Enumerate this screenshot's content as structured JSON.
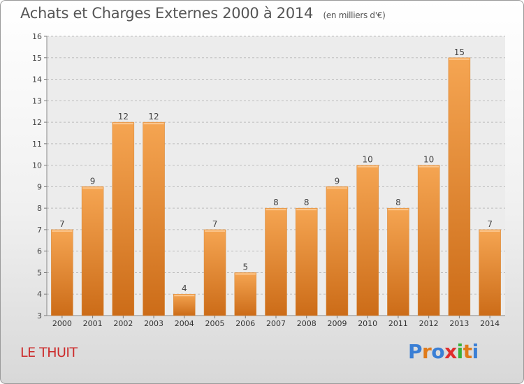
{
  "header": {
    "title": "Achats et Charges Externes 2000 à 2014",
    "subtitle": "(en milliers d'€)"
  },
  "footer": {
    "commune": "LE THUIT",
    "logo_text": "Proxiti",
    "logo_colors": [
      "#3a7fd5",
      "#e07b1a",
      "#3a7fd5",
      "#e02d2d",
      "#3ab03a",
      "#e07b1a",
      "#3a7fd5"
    ]
  },
  "chart_data": {
    "type": "bar",
    "title": "Achats et Charges Externes 2000 à 2014",
    "subtitle": "(en milliers d'€)",
    "categories": [
      "2000",
      "2001",
      "2002",
      "2003",
      "2004",
      "2005",
      "2006",
      "2007",
      "2008",
      "2009",
      "2010",
      "2011",
      "2012",
      "2013",
      "2014"
    ],
    "values": [
      7,
      9,
      12,
      12,
      4,
      7,
      5,
      8,
      8,
      9,
      10,
      8,
      10,
      15,
      7
    ],
    "xlabel": "",
    "ylabel": "",
    "ylim": [
      3,
      16
    ],
    "yticks": [
      3,
      4,
      5,
      6,
      7,
      8,
      9,
      10,
      11,
      12,
      13,
      14,
      15,
      16
    ],
    "grid": "horizontal dashed",
    "bar_color_top": "#f5a552",
    "bar_color_bottom": "#cc6c18"
  }
}
